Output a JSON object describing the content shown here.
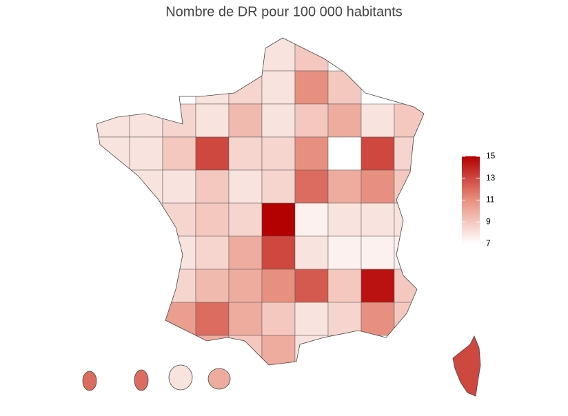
{
  "chart_data": {
    "type": "choropleth",
    "title": "Nombre de DR pour 100 000 habitants",
    "colors": [
      "#ffffff",
      "#e8907f",
      "#b30000"
    ],
    "colorlim": [
      7,
      15
    ],
    "colorticks": [
      7,
      9,
      11,
      13,
      15
    ],
    "values": [
      [
        null,
        null,
        null,
        null,
        null,
        8,
        9,
        null,
        null,
        null
      ],
      [
        null,
        null,
        null,
        8,
        8.5,
        8,
        11,
        9,
        null,
        null
      ],
      [
        8,
        8,
        8.5,
        8,
        9.5,
        8,
        9,
        10,
        8,
        9
      ],
      [
        8,
        8,
        9,
        13,
        8.5,
        8.5,
        11,
        7,
        13,
        8.5
      ],
      [
        null,
        8,
        8,
        9,
        8,
        8.5,
        12,
        10,
        11,
        9
      ],
      [
        null,
        null,
        8.5,
        9,
        8.5,
        15,
        7.5,
        8,
        8,
        8
      ],
      [
        null,
        null,
        8,
        8.5,
        10,
        13,
        8,
        7.5,
        7.5,
        7.5
      ],
      [
        null,
        null,
        8.5,
        9.5,
        10,
        11,
        12.5,
        9,
        14.5,
        9
      ],
      [
        null,
        null,
        10.5,
        12,
        10,
        9,
        8,
        8.5,
        11,
        9
      ],
      [
        null,
        null,
        null,
        10,
        9,
        10,
        8,
        null,
        null,
        null
      ]
    ],
    "corsica": 13,
    "overseas": [
      12,
      12,
      8,
      10
    ]
  }
}
